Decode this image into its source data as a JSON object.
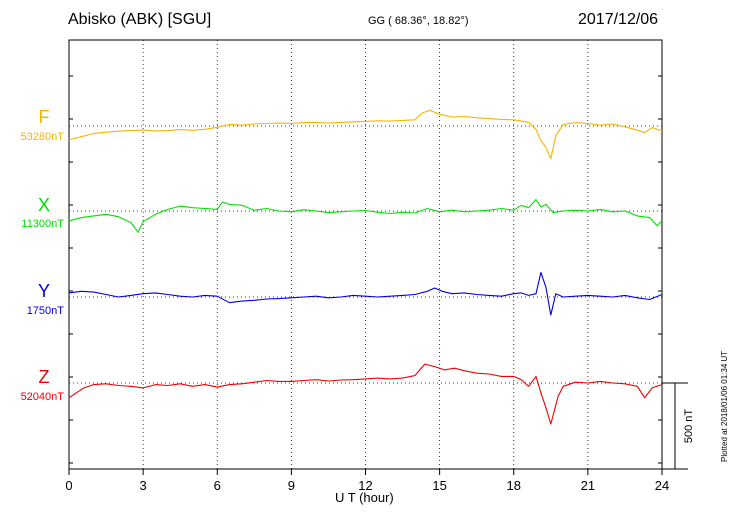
{
  "header": {
    "station": "Abisko (ABK)  [SGU]",
    "coordinates": "GG ( 68.36°,  18.82°)",
    "date": "2017/12/06"
  },
  "footer": {
    "plotted": "Plotted at 2018/01/06 01:34 UT"
  },
  "chart_data": {
    "type": "line",
    "xlabel": "U T (hour)",
    "xlim": [
      0,
      24
    ],
    "xticks": [
      0,
      3,
      6,
      9,
      12,
      15,
      18,
      21,
      24
    ],
    "scale_bar": "500 nT",
    "grid": true,
    "series": [
      {
        "name": "F",
        "baseline": "53280nT",
        "color": "#f5b400",
        "x": [
          0,
          0.5,
          1,
          1.5,
          2,
          2.5,
          3,
          3.5,
          4,
          4.5,
          5,
          5.5,
          6,
          6.5,
          7,
          7.5,
          8,
          8.5,
          9,
          9.5,
          10,
          10.5,
          11,
          11.5,
          12,
          12.5,
          13,
          13.5,
          14,
          14.3,
          14.6,
          15,
          15.5,
          16,
          16.5,
          17,
          17.5,
          18,
          18.3,
          18.6,
          18.9,
          19.1,
          19.3,
          19.5,
          19.7,
          20,
          20.5,
          21,
          21.5,
          22,
          22.5,
          23,
          23.3,
          23.6,
          24
        ],
        "values": [
          -85,
          -65,
          -45,
          -38,
          -32,
          -28,
          -25,
          -30,
          -28,
          -22,
          -26,
          -20,
          -8,
          10,
          5,
          12,
          15,
          18,
          16,
          20,
          22,
          18,
          22,
          25,
          28,
          32,
          30,
          34,
          38,
          80,
          95,
          72,
          55,
          58,
          50,
          45,
          40,
          38,
          30,
          22,
          -20,
          -90,
          -130,
          -200,
          -60,
          10,
          20,
          15,
          5,
          12,
          -5,
          -25,
          -40,
          -10,
          -30
        ]
      },
      {
        "name": "X",
        "baseline": "11300nT",
        "color": "#00e000",
        "x": [
          0,
          0.5,
          1,
          1.5,
          2,
          2.5,
          2.8,
          3,
          3.5,
          4,
          4.5,
          5,
          5.5,
          6,
          6.2,
          6.5,
          7,
          7.5,
          8,
          8.5,
          9,
          9.5,
          10,
          10.5,
          11,
          11.5,
          12,
          12.5,
          13,
          13.5,
          14,
          14.5,
          15,
          15.5,
          16,
          16.5,
          17,
          17.5,
          18,
          18.3,
          18.6,
          18.9,
          19.1,
          19.3,
          19.6,
          20,
          20.5,
          21,
          21.5,
          22,
          22.5,
          23,
          23.5,
          23.8,
          24
        ],
        "values": [
          -60,
          -40,
          -30,
          -20,
          -35,
          -70,
          -130,
          -65,
          -20,
          10,
          30,
          20,
          15,
          10,
          55,
          40,
          35,
          5,
          15,
          0,
          -5,
          8,
          0,
          -10,
          -5,
          0,
          3,
          -8,
          -15,
          -8,
          -12,
          15,
          -5,
          5,
          -5,
          0,
          5,
          15,
          5,
          35,
          20,
          70,
          25,
          40,
          -10,
          0,
          5,
          0,
          10,
          -5,
          0,
          -30,
          -40,
          -90,
          -60
        ]
      },
      {
        "name": "Y",
        "baseline": "1750nT",
        "color": "#0000dd",
        "x": [
          0,
          0.5,
          1,
          1.5,
          2,
          2.5,
          3,
          3.5,
          4,
          4.5,
          5,
          5.5,
          6,
          6.5,
          7,
          7.5,
          8,
          8.5,
          9,
          9.5,
          10,
          10.5,
          11,
          11.5,
          12,
          12.5,
          13,
          13.5,
          14,
          14.5,
          14.8,
          15.1,
          15.5,
          16,
          16.5,
          17,
          17.5,
          18,
          18.3,
          18.6,
          18.9,
          19.1,
          19.3,
          19.5,
          19.7,
          20,
          20.5,
          21,
          21.5,
          22,
          22.5,
          23,
          23.5,
          24
        ],
        "values": [
          25,
          35,
          30,
          15,
          0,
          10,
          20,
          25,
          15,
          5,
          0,
          10,
          5,
          -35,
          -25,
          -20,
          -12,
          -10,
          -5,
          0,
          5,
          -5,
          0,
          10,
          5,
          0,
          5,
          10,
          15,
          35,
          55,
          35,
          20,
          25,
          15,
          10,
          5,
          20,
          25,
          10,
          20,
          150,
          60,
          -110,
          20,
          0,
          5,
          10,
          5,
          0,
          10,
          -5,
          -15,
          15
        ]
      },
      {
        "name": "Z",
        "baseline": "52040nT",
        "color": "#ee0000",
        "x": [
          0,
          0.3,
          0.6,
          1,
          1.5,
          2,
          2.5,
          3,
          3.5,
          4,
          4.5,
          5,
          5.5,
          6,
          6.5,
          7,
          7.5,
          8,
          8.5,
          9,
          9.5,
          10,
          10.5,
          11,
          11.5,
          12,
          12.5,
          13,
          13.5,
          14,
          14.4,
          14.8,
          15.2,
          15.6,
          16,
          16.5,
          17,
          17.5,
          18,
          18.3,
          18.6,
          18.9,
          19.1,
          19.3,
          19.5,
          19.8,
          20,
          20.5,
          21,
          21.5,
          22,
          22.5,
          23,
          23.3,
          23.6,
          24
        ],
        "values": [
          -90,
          -60,
          -30,
          -10,
          -5,
          -15,
          -20,
          -30,
          -10,
          -15,
          -5,
          -20,
          -10,
          -25,
          -10,
          -5,
          5,
          15,
          10,
          10,
          15,
          20,
          12,
          18,
          20,
          25,
          30,
          25,
          30,
          45,
          115,
          100,
          80,
          90,
          75,
          60,
          55,
          40,
          40,
          20,
          -20,
          40,
          -60,
          -150,
          -250,
          -80,
          -20,
          5,
          0,
          10,
          0,
          -5,
          -20,
          -90,
          -30,
          -10
        ]
      }
    ]
  }
}
